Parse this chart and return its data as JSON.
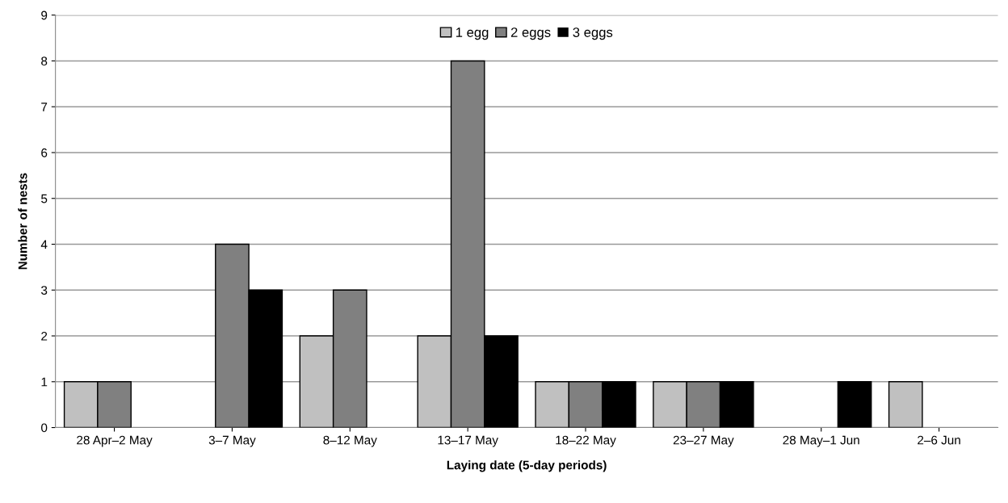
{
  "chart_data": {
    "type": "bar",
    "xlabel": "Laying date (5-day periods)",
    "ylabel": "Number of nests",
    "categories": [
      "28 Apr–2 May",
      "3–7 May",
      "8–12 May",
      "13–17 May",
      "18–22 May",
      "23–27 May",
      "28 May–1 Jun",
      "2–6 Jun"
    ],
    "series": [
      {
        "name": "1 egg",
        "color": "#c0c0c0",
        "values": [
          1,
          0,
          2,
          2,
          1,
          1,
          0,
          1
        ]
      },
      {
        "name": "2 eggs",
        "color": "#808080",
        "values": [
          1,
          4,
          3,
          8,
          1,
          1,
          0,
          0
        ]
      },
      {
        "name": "3 eggs",
        "color": "#000000",
        "values": [
          0,
          3,
          0,
          2,
          1,
          1,
          1,
          0
        ]
      }
    ],
    "ylim": [
      0,
      9
    ],
    "yticks": [
      0,
      1,
      2,
      3,
      4,
      5,
      6,
      7,
      8,
      9
    ],
    "grid": "y",
    "legend": "top"
  }
}
